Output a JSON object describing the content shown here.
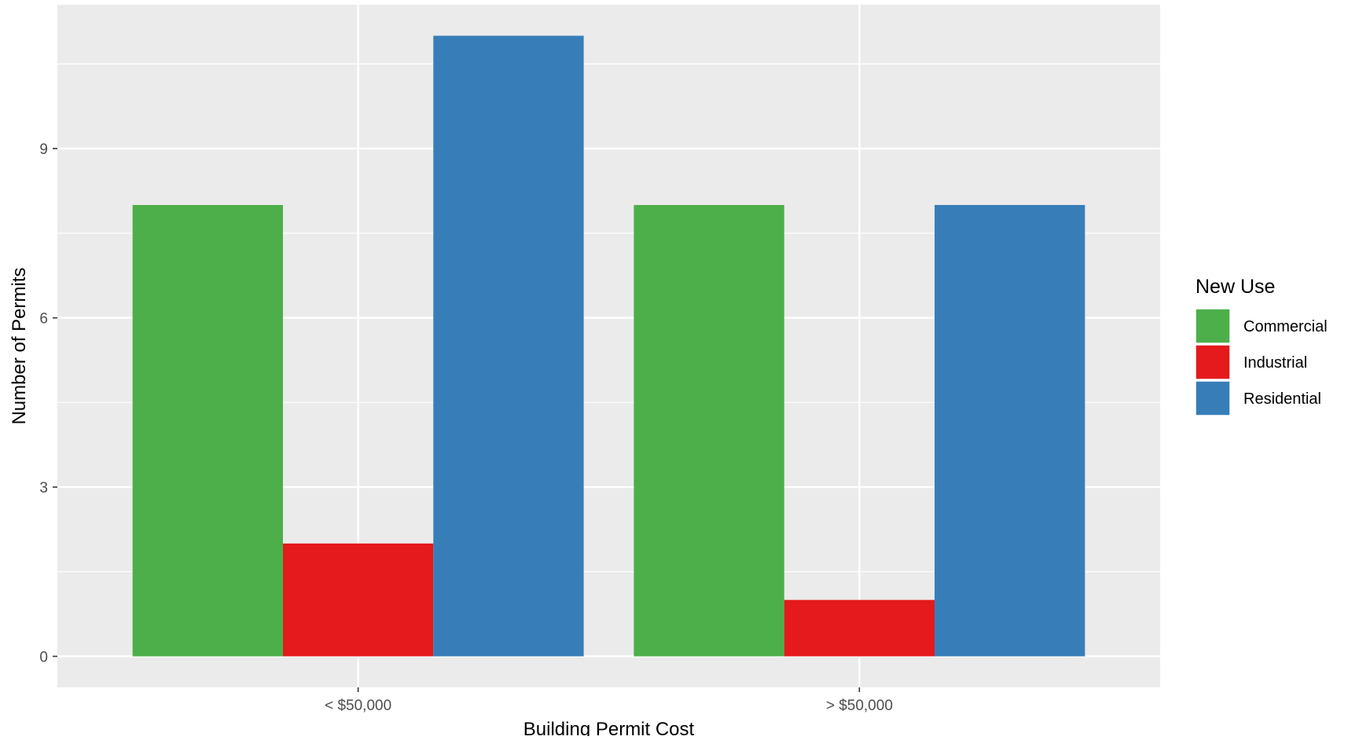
{
  "chart_data": {
    "type": "bar",
    "categories": [
      "< $50,000",
      "> $50,000"
    ],
    "series": [
      {
        "name": "Commercial",
        "values": [
          8,
          8
        ],
        "color": "#4DAF4A"
      },
      {
        "name": "Industrial",
        "values": [
          2,
          1
        ],
        "color": "#E41A1C"
      },
      {
        "name": "Residential",
        "values": [
          11,
          8
        ],
        "color": "#377EB8"
      }
    ],
    "xlabel": "Building Permit Cost",
    "ylabel": "Number of Permits",
    "ylim": [
      -0.55,
      11.55
    ],
    "yticks": [
      0,
      3,
      6,
      9
    ],
    "ytick_labels": [
      "0",
      "3",
      "6",
      "9"
    ],
    "grid": true,
    "legend": {
      "title": "New Use",
      "position": "right"
    }
  }
}
